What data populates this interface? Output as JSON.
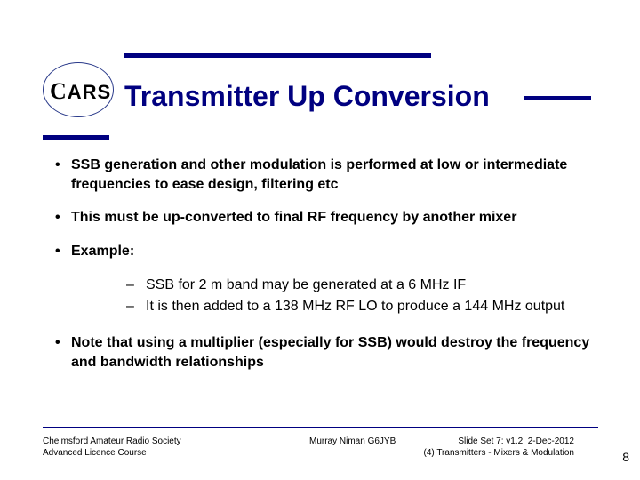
{
  "colors": {
    "accent": "#000080",
    "text": "#000000",
    "bg": "#ffffff"
  },
  "logo": {
    "text": "CARS"
  },
  "title": "Transmitter Up Conversion",
  "bullets": {
    "b1": "SSB generation and other modulation is performed at low or intermediate frequencies to ease design, filtering etc",
    "b2": "This must be up-converted to final RF frequency by another mixer",
    "b3": "Example:",
    "sub1": "SSB for 2 m band may be generated at a 6 MHz IF",
    "sub2": "It is then added to a 138 MHz RF LO to produce a 144 MHz output",
    "b4": "Note that using a multiplier (especially for SSB) would destroy the frequency and bandwidth relationships"
  },
  "footer": {
    "left_line1": "Chelmsford Amateur Radio Society",
    "left_line2": "Advanced Licence Course",
    "mid": "Murray Niman G6JYB",
    "right_line1": "Slide Set 7:  v1.2,  2-Dec-2012",
    "right_line2": "(4) Transmitters - Mixers & Modulation"
  },
  "page_number": "8"
}
